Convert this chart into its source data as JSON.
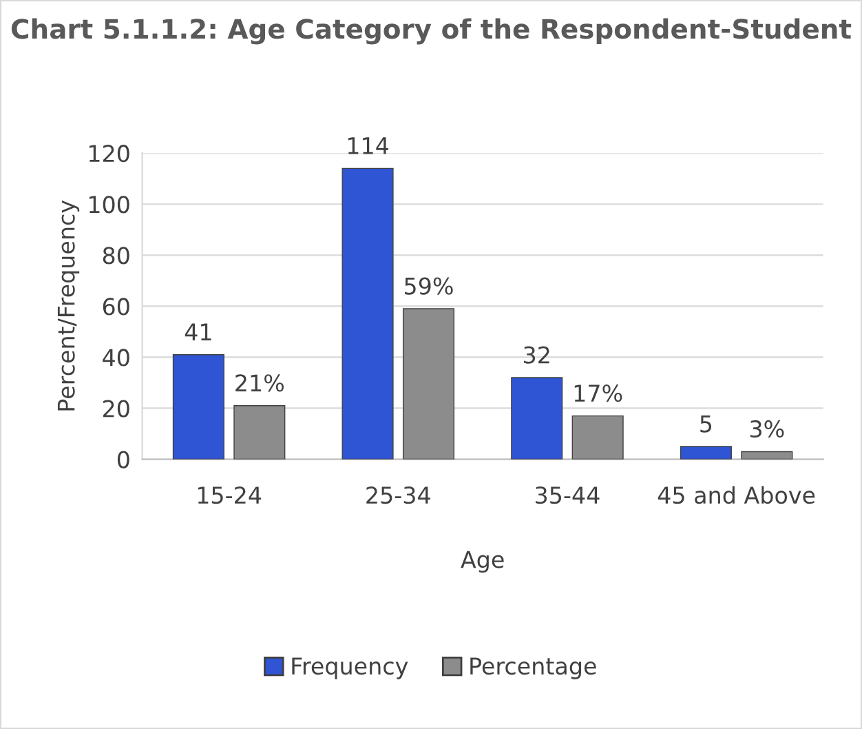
{
  "chart_data": {
    "type": "bar",
    "title": "Chart 5.1.1.2: Age Category of the Respondent-Student",
    "xlabel": "Age",
    "ylabel": "Percent/Frequency",
    "categories": [
      "15-24",
      "25-34",
      "35-44",
      "45 and Above"
    ],
    "series": [
      {
        "name": "Frequency",
        "color": "#2f55d4",
        "values": [
          41,
          114,
          32,
          5
        ],
        "value_labels": [
          "41",
          "114",
          "32",
          "5"
        ]
      },
      {
        "name": "Percentage",
        "color": "#8c8c8c",
        "values": [
          21,
          59,
          17,
          3
        ],
        "value_labels": [
          "21%",
          "59%",
          "17%",
          "3%"
        ]
      }
    ],
    "ylim": [
      0,
      120
    ],
    "yticks": [
      0,
      20,
      40,
      60,
      80,
      100,
      120
    ],
    "grid": "y",
    "legend": "bottom"
  }
}
